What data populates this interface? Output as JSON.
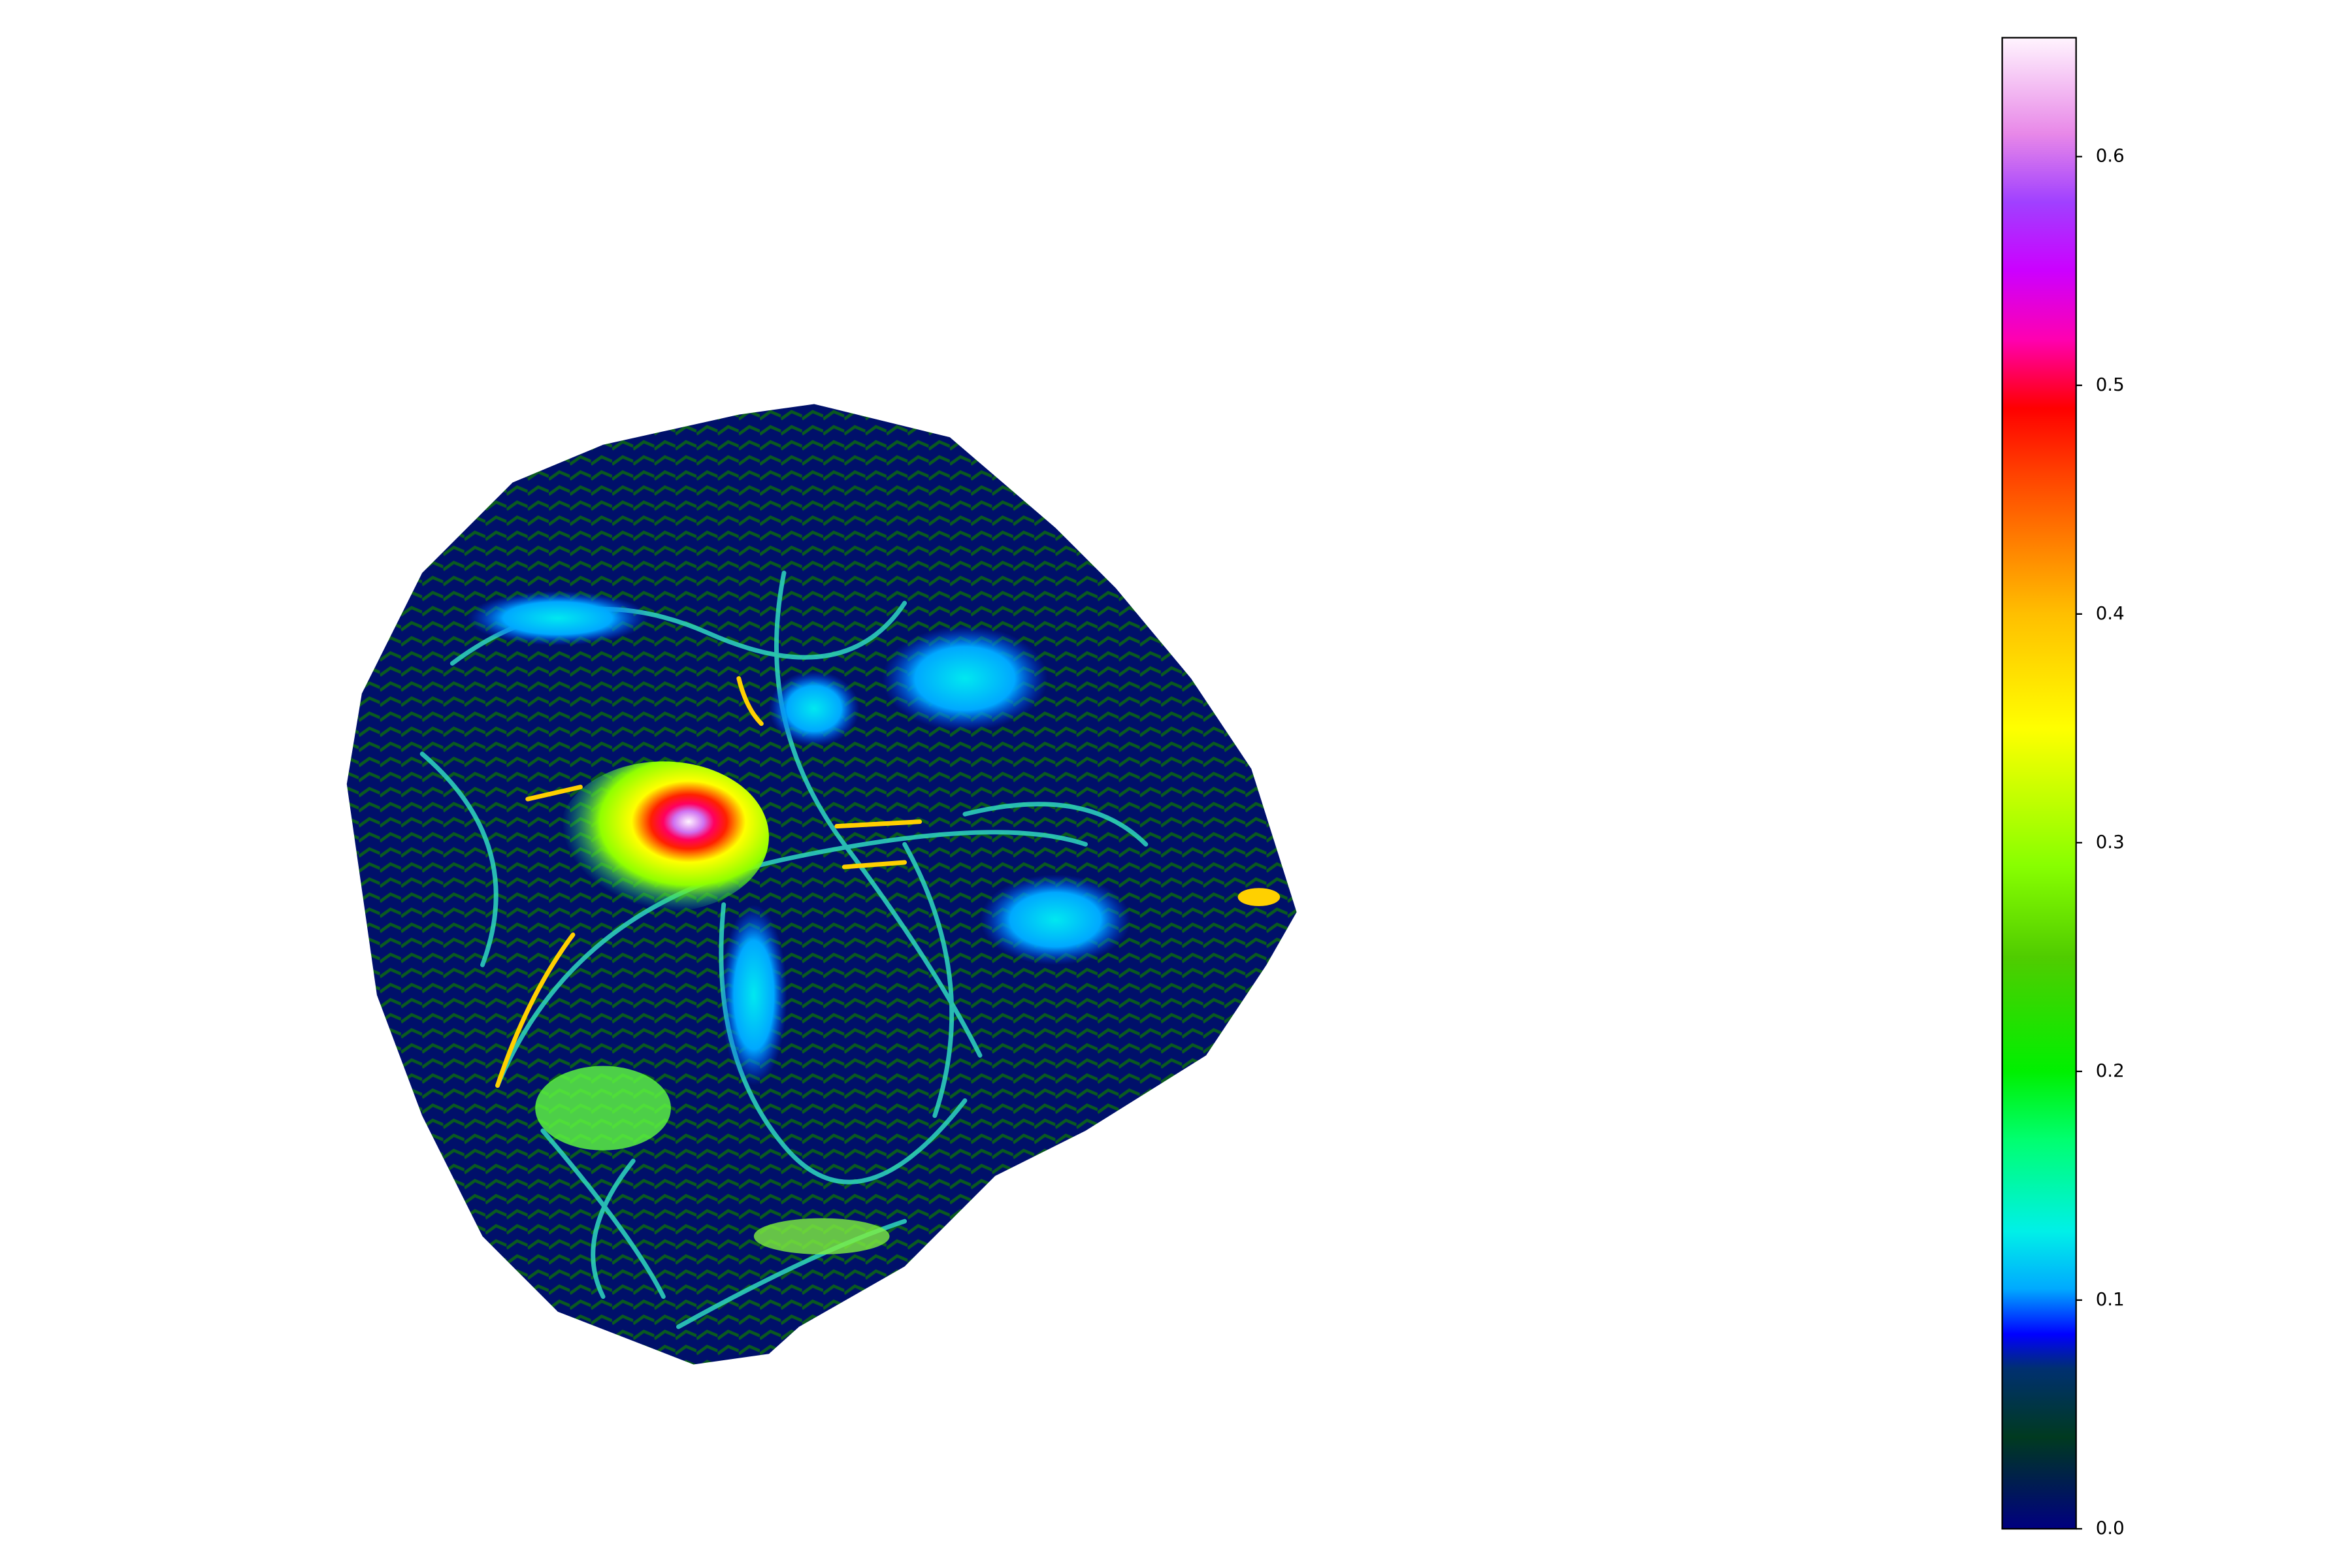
{
  "chart_data": {
    "type": "heatmap",
    "colorbar": {
      "lim": [
        0,
        0.652
      ],
      "ticks": [
        {
          "value": 0,
          "label": "0.0"
        },
        0.1,
        0.2,
        0.3,
        0.4,
        0.5,
        0.6
      ],
      "colormap": [
        [
          0,
          "#000080"
        ],
        [
          0.04,
          "#003a20"
        ],
        [
          0.07,
          "#003070"
        ],
        [
          0.085,
          "#0000ff"
        ],
        [
          0.105,
          "#00aaff"
        ],
        [
          0.13,
          "#00f0e8"
        ],
        [
          0.17,
          "#00ff70"
        ],
        [
          0.2,
          "#00f000"
        ],
        [
          0.25,
          "#50cc00"
        ],
        [
          0.29,
          "#88ff00"
        ],
        [
          0.35,
          "#ffff00"
        ],
        [
          0.4,
          "#ffbf00"
        ],
        [
          0.46,
          "#ff4400"
        ],
        [
          0.49,
          "#ff0000"
        ],
        [
          0.52,
          "#ff00b0"
        ],
        [
          0.55,
          "#cc00ff"
        ],
        [
          0.58,
          "#a040ff"
        ],
        [
          0.61,
          "#e888e8"
        ],
        [
          0.652,
          "#fff4fe"
        ]
      ]
    }
  }
}
